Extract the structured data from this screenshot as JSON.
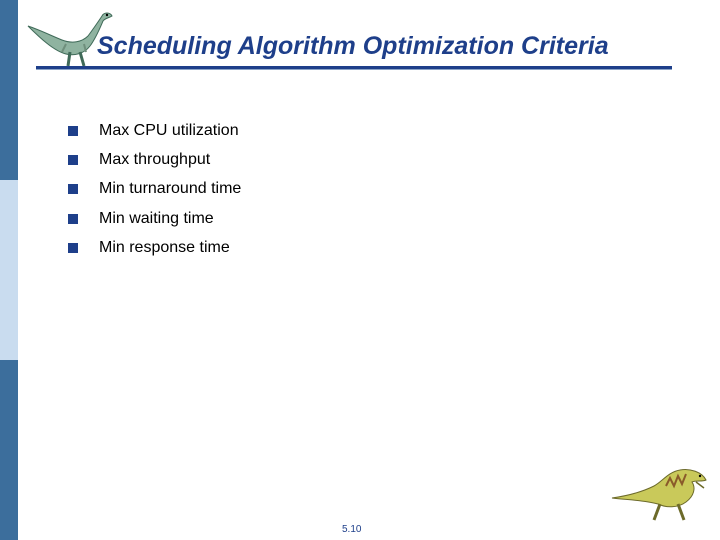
{
  "slide": {
    "title": "Scheduling Algorithm Optimization Criteria",
    "bullets": [
      "Max CPU utilization",
      "Max throughput",
      "Min turnaround time",
      "Min waiting time",
      "Min response time"
    ],
    "page_number": "5.10"
  },
  "icons": {
    "top_logo": "dinosaur-logo-icon",
    "bottom_logo": "dinosaur-icon",
    "bullet": "square-bullet-icon"
  },
  "colors": {
    "title": "#1e3f8a",
    "stripe_dark": "#3c6e9c",
    "stripe_light": "#c9dcef"
  }
}
